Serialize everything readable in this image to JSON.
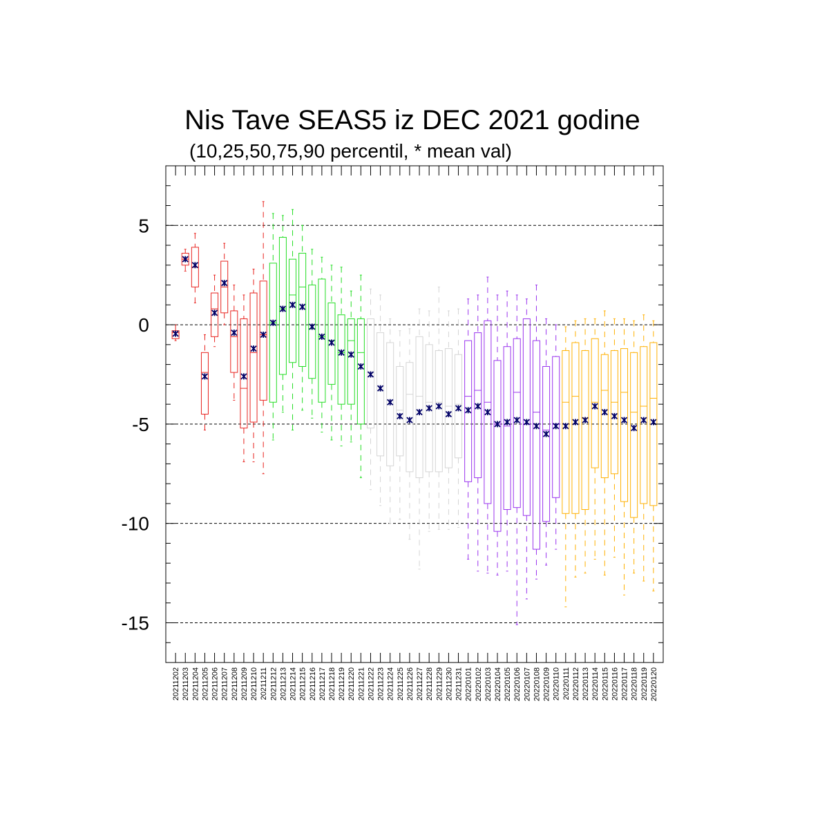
{
  "chart_data": {
    "type": "box",
    "title": "Nis Tave SEAS5 iz DEC 2021 godine",
    "subtitle": "(10,25,50,75,90 percentil, * mean val)",
    "xlabel": "",
    "ylabel": "",
    "ylim": [
      -17,
      8
    ],
    "yticks": [
      5,
      0,
      -5,
      -10,
      -15
    ],
    "grid": "horizontal dashed at major ticks",
    "legend": "none",
    "colors": {
      "red": "#e8221e",
      "green": "#22dd22",
      "gray": "#d4d4d4",
      "purple": "#9933ee",
      "orange": "#ffb000",
      "mean_marker": "#000066"
    },
    "categories": [
      "20211202",
      "20211203",
      "20211204",
      "20211205",
      "20211206",
      "20211207",
      "20211208",
      "20211209",
      "20211210",
      "20211211",
      "20211212",
      "20211213",
      "20211214",
      "20211215",
      "20211216",
      "20211217",
      "20211218",
      "20211219",
      "20211220",
      "20211221",
      "20211222",
      "20211223",
      "20211224",
      "20211225",
      "20211226",
      "20211227",
      "20211228",
      "20211229",
      "20211230",
      "20211231",
      "20220101",
      "20220102",
      "20220103",
      "20220104",
      "20220105",
      "20220106",
      "20220107",
      "20220108",
      "20220109",
      "20220110",
      "20220111",
      "20220112",
      "20220113",
      "20220114",
      "20220115",
      "20220116",
      "20220117",
      "20220118",
      "20220119",
      "20220120"
    ],
    "boxes": [
      {
        "color": "red",
        "p10": -0.8,
        "p25": -0.7,
        "p50": -0.4,
        "p75": -0.3,
        "p90": 0.0,
        "mean": -0.45
      },
      {
        "color": "red",
        "p10": 2.7,
        "p25": 3.0,
        "p50": 3.3,
        "p75": 3.6,
        "p90": 3.8,
        "mean": 3.3
      },
      {
        "color": "red",
        "p10": 1.1,
        "p25": 1.9,
        "p50": 2.9,
        "p75": 3.9,
        "p90": 4.6,
        "mean": 3.0
      },
      {
        "color": "red",
        "p10": -5.3,
        "p25": -4.5,
        "p50": -2.4,
        "p75": -1.4,
        "p90": -0.5,
        "mean": -2.6
      },
      {
        "color": "red",
        "p10": -1.1,
        "p25": -0.6,
        "p50": 0.8,
        "p75": 1.6,
        "p90": 2.5,
        "mean": 0.6
      },
      {
        "color": "red",
        "p10": 0.0,
        "p25": 0.6,
        "p50": 1.9,
        "p75": 3.2,
        "p90": 4.1,
        "mean": 2.1
      },
      {
        "color": "red",
        "p10": -3.8,
        "p25": -2.4,
        "p50": -0.6,
        "p75": 0.7,
        "p90": 2.0,
        "mean": -0.4
      },
      {
        "color": "red",
        "p10": -6.9,
        "p25": -5.2,
        "p50": -3.2,
        "p75": 0.3,
        "p90": 1.5,
        "mean": -2.6
      },
      {
        "color": "red",
        "p10": -6.9,
        "p25": -4.9,
        "p50": -1.4,
        "p75": 1.6,
        "p90": 2.8,
        "mean": -1.2
      },
      {
        "color": "red",
        "p10": -7.5,
        "p25": -3.8,
        "p50": -0.5,
        "p75": 2.2,
        "p90": 6.2,
        "mean": -0.5
      },
      {
        "color": "green",
        "p10": -5.8,
        "p25": -3.9,
        "p50": 0.1,
        "p75": 3.1,
        "p90": 5.6,
        "mean": 0.1
      },
      {
        "color": "green",
        "p10": -4.4,
        "p25": -2.5,
        "p50": 0.8,
        "p75": 4.4,
        "p90": 5.5,
        "mean": 0.8
      },
      {
        "color": "green",
        "p10": -5.3,
        "p25": -1.9,
        "p50": 1.5,
        "p75": 3.3,
        "p90": 5.8,
        "mean": 1.0
      },
      {
        "color": "green",
        "p10": -4.3,
        "p25": -2.1,
        "p50": 1.9,
        "p75": 3.6,
        "p90": 5.0,
        "mean": 0.9
      },
      {
        "color": "green",
        "p10": -4.7,
        "p25": -2.7,
        "p50": -0.2,
        "p75": 2.0,
        "p90": 3.8,
        "mean": -0.1
      },
      {
        "color": "green",
        "p10": -5.4,
        "p25": -3.9,
        "p50": -0.6,
        "p75": 2.3,
        "p90": 3.4,
        "mean": -0.6
      },
      {
        "color": "green",
        "p10": -5.8,
        "p25": -3.0,
        "p50": -0.8,
        "p75": 1.1,
        "p90": 3.0,
        "mean": -0.9
      },
      {
        "color": "green",
        "p10": -6.1,
        "p25": -4.0,
        "p50": -1.4,
        "p75": 0.5,
        "p90": 2.9,
        "mean": -1.4
      },
      {
        "color": "green",
        "p10": -5.9,
        "p25": -4.0,
        "p50": -0.8,
        "p75": 0.3,
        "p90": 1.7,
        "mean": -1.5
      },
      {
        "color": "green",
        "p10": -7.7,
        "p25": -5.0,
        "p50": -1.4,
        "p75": 0.3,
        "p90": 2.5,
        "mean": -2.1
      },
      {
        "color": "gray",
        "p10": -8.3,
        "p25": -5.2,
        "p50": -2.4,
        "p75": 0.3,
        "p90": 1.8,
        "mean": -2.5
      },
      {
        "color": "gray",
        "p10": -9.1,
        "p25": -6.6,
        "p50": -3.3,
        "p75": -0.4,
        "p90": 1.5,
        "mean": -3.2
      },
      {
        "color": "gray",
        "p10": -10.0,
        "p25": -7.1,
        "p50": -3.8,
        "p75": -0.9,
        "p90": 0.3,
        "mean": -3.9
      },
      {
        "color": "gray",
        "p10": -9.8,
        "p25": -6.6,
        "p50": -4.3,
        "p75": -2.1,
        "p90": -0.3,
        "mean": -4.6
      },
      {
        "color": "gray",
        "p10": -10.8,
        "p25": -7.4,
        "p50": -3.5,
        "p75": -1.9,
        "p90": -0.2,
        "mean": -4.8
      },
      {
        "color": "gray",
        "p10": -12.3,
        "p25": -7.7,
        "p50": -3.6,
        "p75": -0.6,
        "p90": 0.8,
        "mean": -4.4
      },
      {
        "color": "gray",
        "p10": -10.4,
        "p25": -7.4,
        "p50": -3.9,
        "p75": -1.0,
        "p90": 0.7,
        "mean": -4.2
      },
      {
        "color": "gray",
        "p10": -10.3,
        "p25": -7.4,
        "p50": -3.9,
        "p75": -1.3,
        "p90": 1.9,
        "mean": -4.1
      },
      {
        "color": "gray",
        "p10": -10.3,
        "p25": -7.2,
        "p50": -4.1,
        "p75": -1.2,
        "p90": 0.7,
        "mean": -4.5
      },
      {
        "color": "gray",
        "p10": -10.2,
        "p25": -6.7,
        "p50": -4.0,
        "p75": -1.5,
        "p90": 0.8,
        "mean": -4.2
      },
      {
        "color": "purple",
        "p10": -11.8,
        "p25": -7.9,
        "p50": -3.6,
        "p75": -0.8,
        "p90": 1.3,
        "mean": -4.3
      },
      {
        "color": "purple",
        "p10": -12.4,
        "p25": -7.7,
        "p50": -3.3,
        "p75": -0.4,
        "p90": 1.5,
        "mean": -4.1
      },
      {
        "color": "purple",
        "p10": -12.5,
        "p25": -9.0,
        "p50": -3.9,
        "p75": 0.2,
        "p90": 2.4,
        "mean": -4.4
      },
      {
        "color": "purple",
        "p10": -12.6,
        "p25": -10.4,
        "p50": -5.0,
        "p75": -1.8,
        "p90": 1.5,
        "mean": -5.0
      },
      {
        "color": "purple",
        "p10": -12.4,
        "p25": -9.3,
        "p50": -5.1,
        "p75": -1.1,
        "p90": 1.7,
        "mean": -4.9
      },
      {
        "color": "purple",
        "p10": -15.1,
        "p25": -9.2,
        "p50": -3.4,
        "p75": -0.7,
        "p90": 1.5,
        "mean": -4.8
      },
      {
        "color": "purple",
        "p10": -13.8,
        "p25": -9.6,
        "p50": -5.0,
        "p75": 0.3,
        "p90": 1.3,
        "mean": -4.9
      },
      {
        "color": "purple",
        "p10": -12.8,
        "p25": -11.3,
        "p50": -4.4,
        "p75": -0.8,
        "p90": 2.0,
        "mean": -5.1
      },
      {
        "color": "purple",
        "p10": -12.1,
        "p25": -9.9,
        "p50": -5.3,
        "p75": -2.1,
        "p90": 0.3,
        "mean": -5.5
      },
      {
        "color": "purple",
        "p10": -11.3,
        "p25": -8.7,
        "p50": -5.0,
        "p75": -1.6,
        "p90": 0.0,
        "mean": -5.1
      },
      {
        "color": "orange",
        "p10": -14.2,
        "p25": -9.5,
        "p50": -3.9,
        "p75": -1.3,
        "p90": -0.1,
        "mean": -5.1
      },
      {
        "color": "orange",
        "p10": -12.7,
        "p25": -9.5,
        "p50": -3.6,
        "p75": -0.9,
        "p90": 0.2,
        "mean": -4.9
      },
      {
        "color": "orange",
        "p10": -12.5,
        "p25": -9.3,
        "p50": -4.7,
        "p75": -1.3,
        "p90": 0.3,
        "mean": -4.8
      },
      {
        "color": "orange",
        "p10": -11.8,
        "p25": -7.2,
        "p50": -3.9,
        "p75": -0.7,
        "p90": 0.3,
        "mean": -4.1
      },
      {
        "color": "orange",
        "p10": -12.6,
        "p25": -7.7,
        "p50": -3.3,
        "p75": -1.5,
        "p90": 0.7,
        "mean": -4.4
      },
      {
        "color": "orange",
        "p10": -11.7,
        "p25": -7.5,
        "p50": -3.9,
        "p75": -1.3,
        "p90": 0.3,
        "mean": -4.6
      },
      {
        "color": "orange",
        "p10": -13.6,
        "p25": -8.9,
        "p50": -3.4,
        "p75": -1.2,
        "p90": 0.3,
        "mean": -4.8
      },
      {
        "color": "orange",
        "p10": -12.5,
        "p25": -9.7,
        "p50": -4.4,
        "p75": -1.4,
        "p90": 0.2,
        "mean": -5.2
      },
      {
        "color": "orange",
        "p10": -12.9,
        "p25": -9.0,
        "p50": -4.1,
        "p75": -1.1,
        "p90": 0.5,
        "mean": -4.8
      },
      {
        "color": "orange",
        "p10": -13.4,
        "p25": -9.1,
        "p50": -3.7,
        "p75": -0.9,
        "p90": 0.2,
        "mean": -4.9
      }
    ]
  }
}
